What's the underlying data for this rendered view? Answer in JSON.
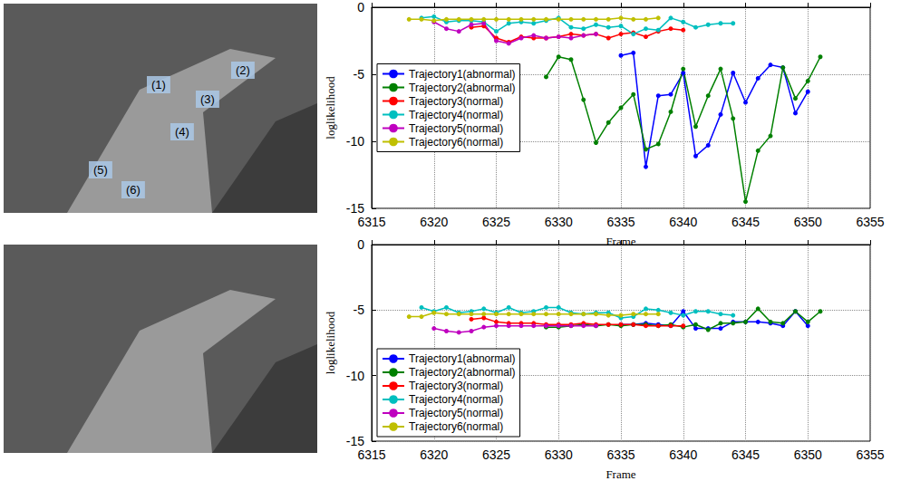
{
  "photo_labels": [
    "(1)",
    "(2)",
    "(3)",
    "(4)",
    "(5)",
    "(6)"
  ],
  "chart_data": [
    {
      "type": "line",
      "xlabel": "Frame",
      "ylabel": "loglikelihood",
      "xlim": [
        6315,
        6355
      ],
      "xticks": [
        6315,
        6320,
        6325,
        6330,
        6335,
        6340,
        6345,
        6350,
        6355
      ],
      "ylim": [
        -15,
        0
      ],
      "yticks": [
        -15,
        -10,
        -5,
        0
      ],
      "grid": true,
      "legend": "left",
      "marker": "circle",
      "series": [
        {
          "name": "Trajectory1(abnormal)",
          "color": "#0000ff",
          "x": [
            6335,
            6336,
            6337,
            6338,
            6339,
            6340,
            6341,
            6342,
            6343,
            6344,
            6345,
            6346,
            6347,
            6348,
            6349,
            6350
          ],
          "values": [
            -3.6,
            -3.4,
            -11.9,
            -6.6,
            -6.5,
            -4.9,
            -11.1,
            -10.3,
            -8.0,
            -4.9,
            -7.1,
            -5.3,
            -4.3,
            -4.5,
            -7.9,
            -6.3
          ]
        },
        {
          "name": "Trajectory2(abnormal)",
          "color": "#008000",
          "x": [
            6329,
            6330,
            6331,
            6332,
            6333,
            6334,
            6335,
            6336,
            6337,
            6338,
            6339,
            6340,
            6341,
            6342,
            6343,
            6344,
            6345,
            6346,
            6347,
            6348,
            6349,
            6350,
            6351
          ],
          "values": [
            -5.2,
            -3.7,
            -3.9,
            -6.9,
            -10.1,
            -8.6,
            -7.5,
            -6.5,
            -10.6,
            -10.2,
            -7.8,
            -4.6,
            -8.9,
            -6.6,
            -4.6,
            -8.3,
            -14.5,
            -10.7,
            -9.6,
            -4.5,
            -6.8,
            -5.5,
            -3.7
          ]
        },
        {
          "name": "Trajectory3(normal)",
          "color": "#ff0000",
          "x": [
            6323,
            6324,
            6325,
            6326,
            6327,
            6328,
            6329,
            6330,
            6331,
            6332,
            6333,
            6334,
            6335,
            6336,
            6337,
            6338,
            6339,
            6340
          ],
          "values": [
            -1.5,
            -1.4,
            -2.3,
            -2.6,
            -2.2,
            -2.3,
            -2.3,
            -2.2,
            -2.0,
            -2.1,
            -2.0,
            -2.3,
            -2.0,
            -1.9,
            -2.2,
            -1.8,
            -1.6,
            -1.7
          ]
        },
        {
          "name": "Trajectory4(normal)",
          "color": "#00bfbf",
          "x": [
            6319,
            6320,
            6321,
            6322,
            6323,
            6324,
            6325,
            6326,
            6327,
            6328,
            6329,
            6330,
            6331,
            6332,
            6333,
            6334,
            6335,
            6336,
            6337,
            6338,
            6339,
            6340,
            6341,
            6342,
            6343,
            6344
          ],
          "values": [
            -0.8,
            -0.7,
            -1.1,
            -1.0,
            -1.0,
            -1.1,
            -1.8,
            -1.2,
            -1.1,
            -1.2,
            -1.0,
            -0.8,
            -1.5,
            -1.6,
            -1.3,
            -1.5,
            -1.4,
            -2.0,
            -1.6,
            -1.7,
            -0.8,
            -1.1,
            -1.5,
            -1.3,
            -1.2,
            -1.2
          ]
        },
        {
          "name": "Trajectory5(normal)",
          "color": "#bf00bf",
          "x": [
            6320,
            6321,
            6322,
            6323,
            6324,
            6325,
            6326,
            6327,
            6328,
            6329,
            6330,
            6331,
            6332,
            6333
          ],
          "values": [
            -1.1,
            -1.6,
            -1.8,
            -1.3,
            -1.2,
            -2.5,
            -2.7,
            -2.3,
            -2.1,
            -2.3,
            -2.2,
            -2.3,
            -2.1,
            -2.0
          ]
        },
        {
          "name": "Trajectory6(normal)",
          "color": "#bfbf00",
          "x": [
            6318,
            6319,
            6320,
            6321,
            6322,
            6323,
            6324,
            6325,
            6326,
            6327,
            6328,
            6329,
            6330,
            6331,
            6332,
            6333,
            6334,
            6335,
            6336,
            6337,
            6338
          ],
          "values": [
            -0.9,
            -0.9,
            -1.0,
            -0.9,
            -0.9,
            -0.9,
            -0.9,
            -0.9,
            -0.9,
            -0.9,
            -0.9,
            -0.9,
            -0.9,
            -0.9,
            -0.9,
            -0.9,
            -0.9,
            -0.8,
            -0.9,
            -0.9,
            -0.8
          ]
        }
      ]
    },
    {
      "type": "line",
      "xlabel": "Frame",
      "ylabel": "loglikelihood",
      "xlim": [
        6315,
        6355
      ],
      "xticks": [
        6315,
        6320,
        6325,
        6330,
        6335,
        6340,
        6345,
        6350,
        6355
      ],
      "ylim": [
        -15,
        0
      ],
      "yticks": [
        -15,
        -10,
        -5,
        0
      ],
      "grid": true,
      "legend": "lower left",
      "marker": "circle",
      "series": [
        {
          "name": "Trajectory1(abnormal)",
          "color": "#0000ff",
          "x": [
            6335,
            6336,
            6337,
            6338,
            6339,
            6340,
            6341,
            6342,
            6343,
            6344,
            6345,
            6346,
            6347,
            6348,
            6349,
            6350
          ],
          "values": [
            -6.1,
            -6.1,
            -6.0,
            -6.1,
            -6.2,
            -5.1,
            -6.4,
            -6.4,
            -6.4,
            -5.9,
            -5.9,
            -5.9,
            -6.0,
            -6.2,
            -5.1,
            -6.2
          ]
        },
        {
          "name": "Trajectory2(abnormal)",
          "color": "#008000",
          "x": [
            6329,
            6330,
            6331,
            6332,
            6333,
            6334,
            6335,
            6336,
            6337,
            6338,
            6339,
            6340,
            6341,
            6342,
            6343,
            6344,
            6345,
            6346,
            6347,
            6348,
            6349,
            6350,
            6351
          ],
          "values": [
            -6.3,
            -6.3,
            -6.2,
            -6.1,
            -6.2,
            -6.1,
            -6.2,
            -6.1,
            -6.1,
            -6.2,
            -6.1,
            -6.3,
            -6.1,
            -6.5,
            -6.0,
            -6.0,
            -5.9,
            -4.9,
            -5.9,
            -6.0,
            -5.1,
            -5.9,
            -5.1
          ]
        },
        {
          "name": "Trajectory3(normal)",
          "color": "#ff0000",
          "x": [
            6323,
            6324,
            6325,
            6326,
            6327,
            6328,
            6329,
            6330,
            6331,
            6332,
            6333,
            6334,
            6335,
            6336,
            6337,
            6338,
            6339,
            6340
          ],
          "values": [
            -5.7,
            -5.6,
            -5.9,
            -6.0,
            -6.0,
            -6.0,
            -6.1,
            -6.1,
            -6.1,
            -6.0,
            -6.1,
            -6.1,
            -6.1,
            -6.1,
            -6.2,
            -6.2,
            -6.2,
            -6.2
          ]
        },
        {
          "name": "Trajectory4(normal)",
          "color": "#00bfbf",
          "x": [
            6319,
            6320,
            6321,
            6322,
            6323,
            6324,
            6325,
            6326,
            6327,
            6328,
            6329,
            6330,
            6331,
            6332,
            6333,
            6334,
            6335,
            6336,
            6337,
            6338,
            6339,
            6340,
            6341,
            6342,
            6343,
            6344
          ],
          "values": [
            -4.8,
            -5.1,
            -4.8,
            -5.2,
            -5.1,
            -4.9,
            -5.2,
            -4.8,
            -5.2,
            -5.1,
            -4.8,
            -4.8,
            -5.2,
            -5.3,
            -5.2,
            -5.2,
            -5.6,
            -5.5,
            -4.9,
            -5.0,
            -5.2,
            -5.4,
            -5.1,
            -5.1,
            -5.3,
            -5.4
          ]
        },
        {
          "name": "Trajectory5(normal)",
          "color": "#bf00bf",
          "x": [
            6320,
            6321,
            6322,
            6323,
            6324,
            6325,
            6326,
            6327,
            6328,
            6329,
            6330,
            6331,
            6332,
            6333
          ],
          "values": [
            -6.4,
            -6.6,
            -6.7,
            -6.6,
            -6.3,
            -6.2,
            -6.2,
            -6.2,
            -6.2,
            -6.2,
            -6.2,
            -6.2,
            -6.2,
            -6.2
          ]
        },
        {
          "name": "Trajectory6(normal)",
          "color": "#bfbf00",
          "x": [
            6318,
            6319,
            6320,
            6321,
            6322,
            6323,
            6324,
            6325,
            6326,
            6327,
            6328,
            6329,
            6330,
            6331,
            6332,
            6333,
            6334,
            6335,
            6336,
            6337,
            6338
          ],
          "values": [
            -5.5,
            -5.5,
            -5.2,
            -5.3,
            -5.3,
            -5.3,
            -5.3,
            -5.3,
            -5.3,
            -5.3,
            -5.3,
            -5.3,
            -5.3,
            -5.3,
            -5.3,
            -5.3,
            -5.4,
            -5.4,
            -5.3,
            -5.3,
            -5.3
          ]
        }
      ]
    }
  ]
}
